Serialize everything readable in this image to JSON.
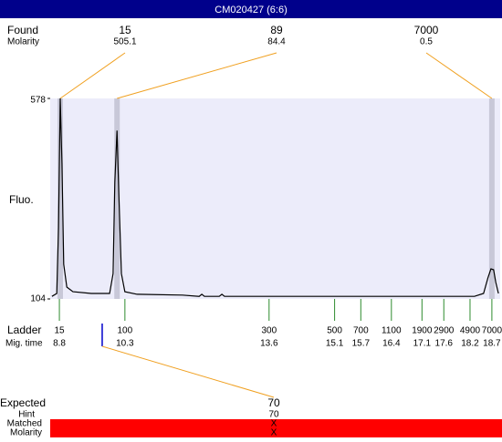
{
  "title": "CM020427 (6:6)",
  "found": {
    "label": "Found",
    "sublabel": "Molarity",
    "peaks": [
      {
        "size": 15,
        "molarity": 505.1,
        "time": 8.82
      },
      {
        "size": 89,
        "molarity": 84.4,
        "time": 10.12
      },
      {
        "size": 7000,
        "molarity": 0.5,
        "time": 18.7
      }
    ]
  },
  "chart_data": {
    "type": "line",
    "y_label": "Fluo.",
    "color": "#000000",
    "ylim": [
      104,
      578
    ],
    "yticks": [
      104,
      578
    ],
    "xlim": [
      8.59,
      18.89
    ],
    "x": [
      8.63,
      8.74,
      8.78,
      8.82,
      8.86,
      8.9,
      8.97,
      9.11,
      9.53,
      9.95,
      10.03,
      10.07,
      10.12,
      10.16,
      10.22,
      10.3,
      10.58,
      11.62,
      12.0,
      12.06,
      12.12,
      12.46,
      12.52,
      12.58,
      13.71,
      15.8,
      18.3,
      18.51,
      18.61,
      18.68,
      18.74,
      18.79,
      18.85
    ],
    "values": [
      110,
      117,
      272,
      578,
      423,
      186,
      132,
      121,
      117,
      117,
      164,
      380,
      502,
      358,
      164,
      121,
      115,
      113,
      110,
      115,
      110,
      110,
      115,
      110,
      110,
      110,
      110,
      117,
      154,
      175,
      173,
      143,
      117
    ]
  },
  "ladder": {
    "label": "Ladder",
    "sublabel": "Mig. time",
    "sizes": [
      15,
      100,
      300,
      500,
      700,
      1100,
      1900,
      2900,
      4900,
      7000
    ],
    "times": [
      8.8,
      10.3,
      13.6,
      15.1,
      15.7,
      16.4,
      17.1,
      17.6,
      18.2,
      18.7
    ]
  },
  "expected": {
    "label": "Expected",
    "hint_label": "Hint",
    "matched_label": "Matched",
    "molarity_label": "Molarity",
    "size": 70,
    "hint": 70,
    "matched": "X",
    "molarity": "X",
    "time": 9.78
  }
}
